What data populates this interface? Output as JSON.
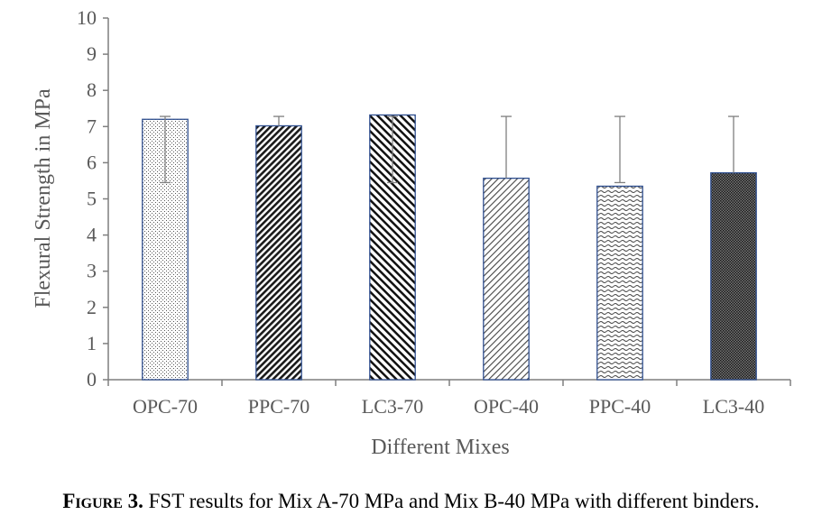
{
  "chart_data": {
    "type": "bar",
    "categories": [
      "OPC-70",
      "PPC-70",
      "LC3-70",
      "OPC-40",
      "PPC-40",
      "LC3-40"
    ],
    "values": [
      7.2,
      7.02,
      7.32,
      5.57,
      5.35,
      5.72
    ],
    "error_high": [
      7.28,
      7.28,
      7.28,
      7.28,
      7.28,
      7.28
    ],
    "error_low": [
      5.45,
      null,
      5.45,
      null,
      5.45,
      null
    ],
    "patterns": [
      "dots-sparse",
      "dense-diagonal",
      "wide-diagonal",
      "light-diagonal",
      "waves",
      "dots-dense"
    ],
    "ylim": [
      0,
      10
    ],
    "yticks": [
      "0",
      "1",
      "2",
      "3",
      "4",
      "5",
      "6",
      "7",
      "8",
      "9",
      "10"
    ],
    "xlabel": "Different Mixes",
    "ylabel": "Flexural Strength in MPa",
    "grid": false,
    "colors": {
      "bar_border": "#2f4f8f",
      "axis": "#7f7f7f",
      "error": "#7f7f7f",
      "fill": "#1a1a1a"
    }
  },
  "caption": {
    "label": "Figure 3.",
    "text": " FST results for Mix A-70 MPa and Mix B-40 MPa with different binders."
  }
}
